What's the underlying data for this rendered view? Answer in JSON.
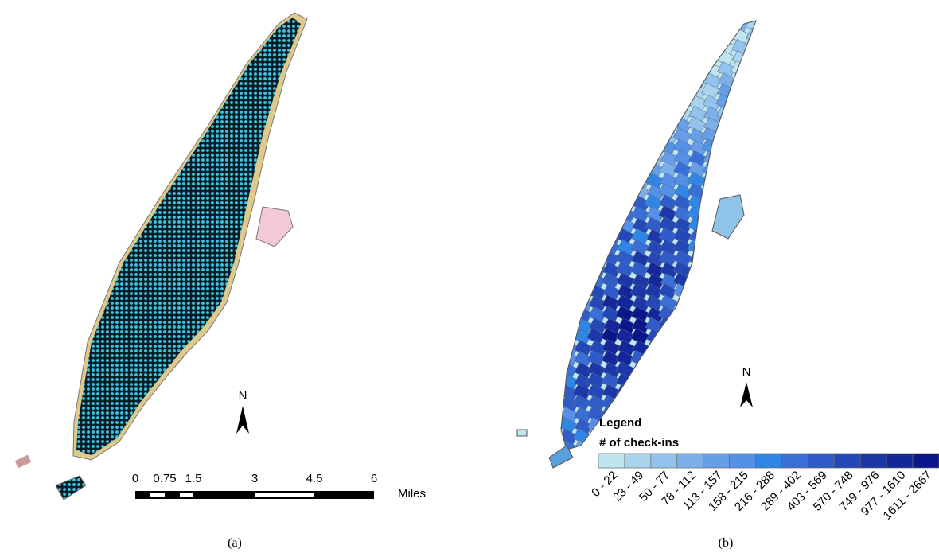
{
  "panel_a": {
    "scale_bar": {
      "ticks": [
        "0",
        "0.75",
        "1.5",
        "3",
        "4.5",
        "6"
      ],
      "unit": "Miles"
    },
    "north": "N",
    "caption": "(a)"
  },
  "panel_b": {
    "north": "N",
    "legend": {
      "title": "Legend",
      "subtitle": "# of check-ins",
      "classes": [
        {
          "label": "0 - 22",
          "color": "#bfe6ef"
        },
        {
          "label": "23 - 49",
          "color": "#a9d4ee"
        },
        {
          "label": "50 - 77",
          "color": "#93c2ec"
        },
        {
          "label": "78 - 112",
          "color": "#7db0ea"
        },
        {
          "label": "113 - 157",
          "color": "#679ee8"
        },
        {
          "label": "158 - 215",
          "color": "#5390e6"
        },
        {
          "label": "216 - 288",
          "color": "#2f86e4"
        },
        {
          "label": "289 - 402",
          "color": "#3b6fd8"
        },
        {
          "label": "403 - 569",
          "color": "#2f5cc9"
        },
        {
          "label": "570 - 748",
          "color": "#2548b8"
        },
        {
          "label": "749 - 976",
          "color": "#1c37a8"
        },
        {
          "label": "977 - 1610",
          "color": "#14279a"
        },
        {
          "label": "1611 - 2667",
          "color": "#0b168a"
        }
      ]
    },
    "caption": "(b)"
  }
}
